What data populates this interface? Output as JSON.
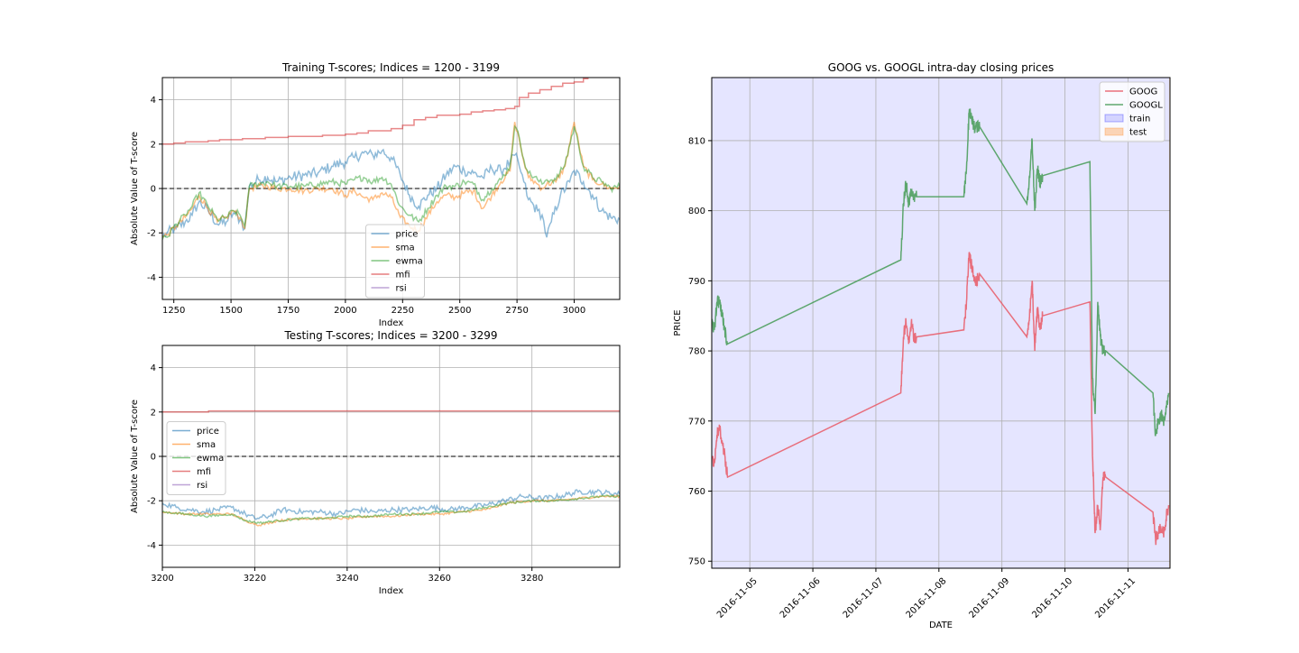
{
  "chart_data": [
    {
      "type": "line",
      "title": "Training T-scores; Indices = 1200 - 3199",
      "xlabel": "Index",
      "ylabel": "Absolute Value of T-score",
      "xlim": [
        1200,
        3199
      ],
      "ylim": [
        -5,
        5
      ],
      "xticks": [
        1250,
        1500,
        1750,
        2000,
        2250,
        2500,
        2750,
        3000
      ],
      "yticks": [
        -4,
        -2,
        0,
        2,
        4
      ],
      "grid": true,
      "legend_position": "lower-center",
      "zero_line": 0,
      "series": [
        {
          "name": "price",
          "color": "#1f77b4",
          "noise": 0.25,
          "x": [
            1200,
            1220,
            1260,
            1300,
            1330,
            1360,
            1400,
            1440,
            1480,
            1510,
            1540,
            1560,
            1580,
            1620,
            1660,
            1700,
            1760,
            1820,
            1880,
            1940,
            2000,
            2040,
            2080,
            2120,
            2160,
            2200,
            2240,
            2280,
            2320,
            2360,
            2400,
            2440,
            2480,
            2520,
            2560,
            2600,
            2640,
            2680,
            2720,
            2740,
            2760,
            2780,
            2800,
            2840,
            2860,
            2880,
            2900,
            2940,
            2980,
            3000,
            3040,
            3080,
            3120,
            3160,
            3199
          ],
          "y": [
            -2.2,
            -2.0,
            -1.8,
            -1.5,
            -1.2,
            -0.6,
            -1.0,
            -1.6,
            -1.5,
            -1.1,
            -1.4,
            -1.8,
            0.1,
            0.4,
            0.5,
            0.3,
            0.5,
            0.6,
            0.7,
            1.0,
            1.2,
            1.4,
            1.6,
            1.5,
            1.7,
            1.4,
            0.6,
            -0.3,
            -0.8,
            -0.3,
            0.0,
            0.6,
            1.0,
            0.8,
            0.7,
            0.5,
            0.9,
            0.8,
            1.2,
            1.5,
            1.0,
            0.3,
            -0.5,
            -1.0,
            -1.2,
            -2.2,
            -1.5,
            -0.3,
            0.3,
            0.8,
            0.3,
            -0.3,
            -1.0,
            -1.3,
            -1.4
          ]
        },
        {
          "name": "sma",
          "color": "#ff7f0e",
          "noise": 0.15,
          "x": [
            1200,
            1220,
            1260,
            1300,
            1330,
            1360,
            1400,
            1440,
            1480,
            1510,
            1540,
            1560,
            1580,
            1620,
            1660,
            1700,
            1760,
            1820,
            1880,
            1940,
            2000,
            2040,
            2080,
            2120,
            2160,
            2200,
            2240,
            2280,
            2320,
            2360,
            2400,
            2440,
            2480,
            2520,
            2560,
            2600,
            2640,
            2680,
            2720,
            2740,
            2760,
            2780,
            2800,
            2840,
            2860,
            2880,
            2920,
            2960,
            3000,
            3020,
            3040,
            3080,
            3120,
            3160,
            3199
          ],
          "y": [
            -2.2,
            -2.1,
            -1.7,
            -1.3,
            -0.9,
            -0.3,
            -0.9,
            -1.5,
            -1.3,
            -1.0,
            -1.3,
            -1.8,
            0.0,
            0.1,
            0.1,
            0.0,
            0.0,
            -0.1,
            0.0,
            0.0,
            -0.3,
            -0.1,
            -0.4,
            -0.5,
            -0.2,
            -0.4,
            -1.3,
            -1.7,
            -1.9,
            -1.2,
            -0.6,
            -0.3,
            -0.4,
            -0.2,
            -0.1,
            -0.9,
            -0.3,
            0.3,
            0.8,
            3.0,
            2.2,
            1.2,
            0.5,
            0.2,
            0.0,
            0.2,
            0.3,
            1.0,
            3.0,
            2.0,
            1.0,
            0.4,
            0.2,
            0.0,
            0.1
          ]
        },
        {
          "name": "ewma",
          "color": "#2ca02c",
          "noise": 0.15,
          "x": [
            1200,
            1220,
            1260,
            1300,
            1330,
            1360,
            1400,
            1440,
            1480,
            1510,
            1540,
            1560,
            1580,
            1620,
            1660,
            1700,
            1760,
            1820,
            1880,
            1940,
            2000,
            2040,
            2080,
            2120,
            2160,
            2200,
            2240,
            2280,
            2320,
            2360,
            2400,
            2440,
            2480,
            2520,
            2560,
            2600,
            2640,
            2680,
            2720,
            2740,
            2760,
            2780,
            2800,
            2840,
            2860,
            2880,
            2920,
            2960,
            3000,
            3020,
            3040,
            3080,
            3120,
            3160,
            3199
          ],
          "y": [
            -2.3,
            -2.2,
            -1.6,
            -1.2,
            -0.8,
            -0.2,
            -0.8,
            -1.4,
            -1.3,
            -1.0,
            -1.2,
            -1.7,
            0.1,
            0.2,
            0.3,
            0.1,
            0.1,
            0.1,
            0.2,
            0.3,
            0.2,
            0.4,
            0.5,
            0.3,
            0.5,
            0.2,
            -0.8,
            -1.2,
            -1.5,
            -0.9,
            -0.3,
            0.1,
            0.1,
            0.3,
            0.2,
            -0.5,
            0.0,
            0.4,
            1.0,
            2.8,
            2.3,
            1.3,
            0.7,
            0.4,
            0.2,
            0.4,
            0.4,
            1.1,
            2.8,
            1.9,
            1.0,
            0.5,
            0.3,
            0.0,
            0.1
          ]
        },
        {
          "name": "mfi",
          "color": "#d62728",
          "noise": 0,
          "x": [
            1200,
            1250,
            1300,
            1350,
            1400,
            1450,
            1500,
            1550,
            1600,
            1650,
            1700,
            1750,
            1800,
            1850,
            1900,
            1950,
            2000,
            2050,
            2100,
            2150,
            2200,
            2250,
            2300,
            2350,
            2400,
            2450,
            2500,
            2550,
            2600,
            2650,
            2700,
            2740,
            2760,
            2800,
            2850,
            2900,
            2950,
            3000,
            3040,
            3060
          ],
          "y": [
            2.0,
            2.05,
            2.1,
            2.1,
            2.15,
            2.2,
            2.2,
            2.25,
            2.25,
            2.3,
            2.3,
            2.35,
            2.35,
            2.35,
            2.4,
            2.4,
            2.45,
            2.5,
            2.6,
            2.6,
            2.7,
            2.85,
            3.1,
            3.2,
            3.3,
            3.3,
            3.35,
            3.45,
            3.5,
            3.55,
            3.6,
            3.7,
            4.1,
            4.3,
            4.45,
            4.6,
            4.75,
            4.8,
            4.95,
            5.05
          ]
        },
        {
          "name": "rsi",
          "color": "#9467bd",
          "noise": 0,
          "x": [],
          "y": []
        }
      ]
    },
    {
      "type": "line",
      "title": "Testing T-scores; Indices = 3200 - 3299",
      "xlabel": "Index",
      "ylabel": "Absolute Value of T-score",
      "xlim": [
        3200,
        3299
      ],
      "ylim": [
        -5,
        5
      ],
      "xticks": [
        3200,
        3220,
        3240,
        3260,
        3280
      ],
      "yticks": [
        -4,
        -2,
        0,
        2,
        4
      ],
      "grid": true,
      "legend_position": "center-left",
      "zero_line": 0,
      "series": [
        {
          "name": "price",
          "color": "#1f77b4",
          "noise": 0.12,
          "x": [
            3200,
            3203,
            3206,
            3209,
            3212,
            3215,
            3218,
            3220,
            3223,
            3226,
            3230,
            3234,
            3238,
            3242,
            3246,
            3250,
            3254,
            3258,
            3262,
            3266,
            3270,
            3274,
            3278,
            3282,
            3286,
            3290,
            3294,
            3299
          ],
          "y": [
            -2.1,
            -2.3,
            -2.4,
            -2.5,
            -2.4,
            -2.3,
            -2.6,
            -2.8,
            -2.7,
            -2.4,
            -2.5,
            -2.5,
            -2.6,
            -2.4,
            -2.5,
            -2.4,
            -2.4,
            -2.3,
            -2.4,
            -2.3,
            -2.2,
            -2.0,
            -1.8,
            -1.9,
            -1.8,
            -1.6,
            -1.6,
            -1.7
          ]
        },
        {
          "name": "sma",
          "color": "#ff7f0e",
          "noise": 0.05,
          "x": [
            3200,
            3205,
            3210,
            3215,
            3218,
            3221,
            3225,
            3230,
            3235,
            3240,
            3245,
            3250,
            3255,
            3260,
            3265,
            3270,
            3275,
            3280,
            3285,
            3290,
            3295,
            3299
          ],
          "y": [
            -2.5,
            -2.6,
            -2.6,
            -2.6,
            -2.9,
            -3.1,
            -2.9,
            -2.8,
            -2.8,
            -2.8,
            -2.7,
            -2.7,
            -2.6,
            -2.6,
            -2.5,
            -2.4,
            -2.1,
            -2.0,
            -2.0,
            -1.9,
            -1.8,
            -1.8
          ]
        },
        {
          "name": "ewma",
          "color": "#2ca02c",
          "noise": 0.05,
          "x": [
            3200,
            3205,
            3210,
            3215,
            3218,
            3221,
            3225,
            3230,
            3235,
            3240,
            3245,
            3250,
            3255,
            3260,
            3265,
            3270,
            3275,
            3280,
            3285,
            3290,
            3295,
            3299
          ],
          "y": [
            -2.5,
            -2.6,
            -2.7,
            -2.6,
            -2.9,
            -3.0,
            -2.9,
            -2.8,
            -2.8,
            -2.7,
            -2.7,
            -2.6,
            -2.6,
            -2.5,
            -2.5,
            -2.3,
            -2.1,
            -2.0,
            -2.0,
            -1.9,
            -1.8,
            -1.8
          ]
        },
        {
          "name": "mfi",
          "color": "#d62728",
          "noise": 0,
          "x": [
            3200,
            3210,
            3299
          ],
          "y": [
            2.0,
            2.05,
            2.05
          ]
        },
        {
          "name": "rsi",
          "color": "#9467bd",
          "noise": 0,
          "x": [],
          "y": []
        }
      ]
    },
    {
      "type": "line",
      "title": "GOOG vs. GOOGL intra-day closing prices",
      "xlabel": "DATE",
      "ylabel": "PRICE",
      "xlim": [
        "2016-11-04 09:30",
        "2016-11-11 16:00"
      ],
      "ylim": [
        749,
        819
      ],
      "xticks": [
        "2016-11-05",
        "2016-11-06",
        "2016-11-07",
        "2016-11-08",
        "2016-11-09",
        "2016-11-10",
        "2016-11-11"
      ],
      "yticks": [
        750,
        760,
        770,
        780,
        790,
        800,
        810
      ],
      "grid": true,
      "legend_position": "top-right",
      "shaded_regions": [
        {
          "name": "train",
          "color": "#0000ff",
          "opacity": 0.1,
          "from": "2016-11-04 09:30",
          "to": "2016-11-11 15:40"
        },
        {
          "name": "test",
          "color": "#ff7f0e",
          "opacity": 0.2,
          "from": "2016-11-11 15:40",
          "to": "2016-11-11 16:00"
        }
      ],
      "series": [
        {
          "name": "GOOG",
          "color": "#e8606e",
          "x": [
            "2016-11-04 09:30",
            "2016-11-04 10:30",
            "2016-11-04 11:30",
            "2016-11-04 12:30",
            "2016-11-04 13:30",
            "2016-11-04 14:30",
            "2016-11-04 15:30",
            "2016-11-07 09:30",
            "2016-11-07 10:30",
            "2016-11-07 11:30",
            "2016-11-07 12:30",
            "2016-11-07 13:30",
            "2016-11-07 14:30",
            "2016-11-07 15:30",
            "2016-11-08 09:30",
            "2016-11-08 10:30",
            "2016-11-08 11:30",
            "2016-11-08 12:30",
            "2016-11-08 13:30",
            "2016-11-08 14:30",
            "2016-11-08 15:30",
            "2016-11-09 09:30",
            "2016-11-09 10:30",
            "2016-11-09 11:30",
            "2016-11-09 12:30",
            "2016-11-09 13:30",
            "2016-11-09 14:30",
            "2016-11-09 15:30",
            "2016-11-10 09:30",
            "2016-11-10 10:30",
            "2016-11-10 11:30",
            "2016-11-10 12:30",
            "2016-11-10 13:30",
            "2016-11-10 14:30",
            "2016-11-10 15:30",
            "2016-11-11 09:30",
            "2016-11-11 10:30",
            "2016-11-11 11:30",
            "2016-11-11 12:30",
            "2016-11-11 13:30",
            "2016-11-11 14:30",
            "2016-11-11 15:30"
          ],
          "y": [
            765,
            764,
            768,
            769,
            767,
            765,
            762,
            774,
            782,
            784,
            781,
            784,
            782,
            782,
            783,
            787,
            794,
            792,
            790,
            790,
            791,
            782,
            785,
            790,
            780,
            786,
            783,
            785,
            787,
            765,
            754,
            758,
            755,
            762,
            762,
            757,
            753,
            754,
            755,
            754,
            756,
            758
          ]
        },
        {
          "name": "GOOGL",
          "color": "#4e9e5e",
          "x": [
            "2016-11-04 09:30",
            "2016-11-04 10:30",
            "2016-11-04 11:30",
            "2016-11-04 12:30",
            "2016-11-04 13:30",
            "2016-11-04 14:30",
            "2016-11-04 15:30",
            "2016-11-07 09:30",
            "2016-11-07 10:30",
            "2016-11-07 11:30",
            "2016-11-07 12:30",
            "2016-11-07 13:30",
            "2016-11-07 14:30",
            "2016-11-07 15:30",
            "2016-11-08 09:30",
            "2016-11-08 10:30",
            "2016-11-08 11:30",
            "2016-11-08 12:30",
            "2016-11-08 13:30",
            "2016-11-08 14:30",
            "2016-11-08 15:30",
            "2016-11-09 09:30",
            "2016-11-09 10:30",
            "2016-11-09 11:30",
            "2016-11-09 12:30",
            "2016-11-09 13:30",
            "2016-11-09 14:30",
            "2016-11-09 15:30",
            "2016-11-10 09:30",
            "2016-11-10 10:30",
            "2016-11-10 11:30",
            "2016-11-10 12:30",
            "2016-11-10 13:30",
            "2016-11-10 14:30",
            "2016-11-10 15:30",
            "2016-11-11 09:30",
            "2016-11-11 10:30",
            "2016-11-11 11:30",
            "2016-11-11 12:30",
            "2016-11-11 13:30",
            "2016-11-11 14:30",
            "2016-11-11 15:30"
          ],
          "y": [
            784,
            783,
            787,
            787,
            785,
            783,
            781,
            793,
            801,
            804,
            801,
            803,
            802,
            802,
            802,
            806,
            814,
            813,
            812,
            812,
            812,
            801,
            805,
            810,
            800,
            806,
            804,
            805,
            807,
            776,
            771,
            787,
            782,
            780,
            780,
            774,
            768,
            770,
            771,
            770,
            772,
            774
          ]
        }
      ]
    }
  ]
}
